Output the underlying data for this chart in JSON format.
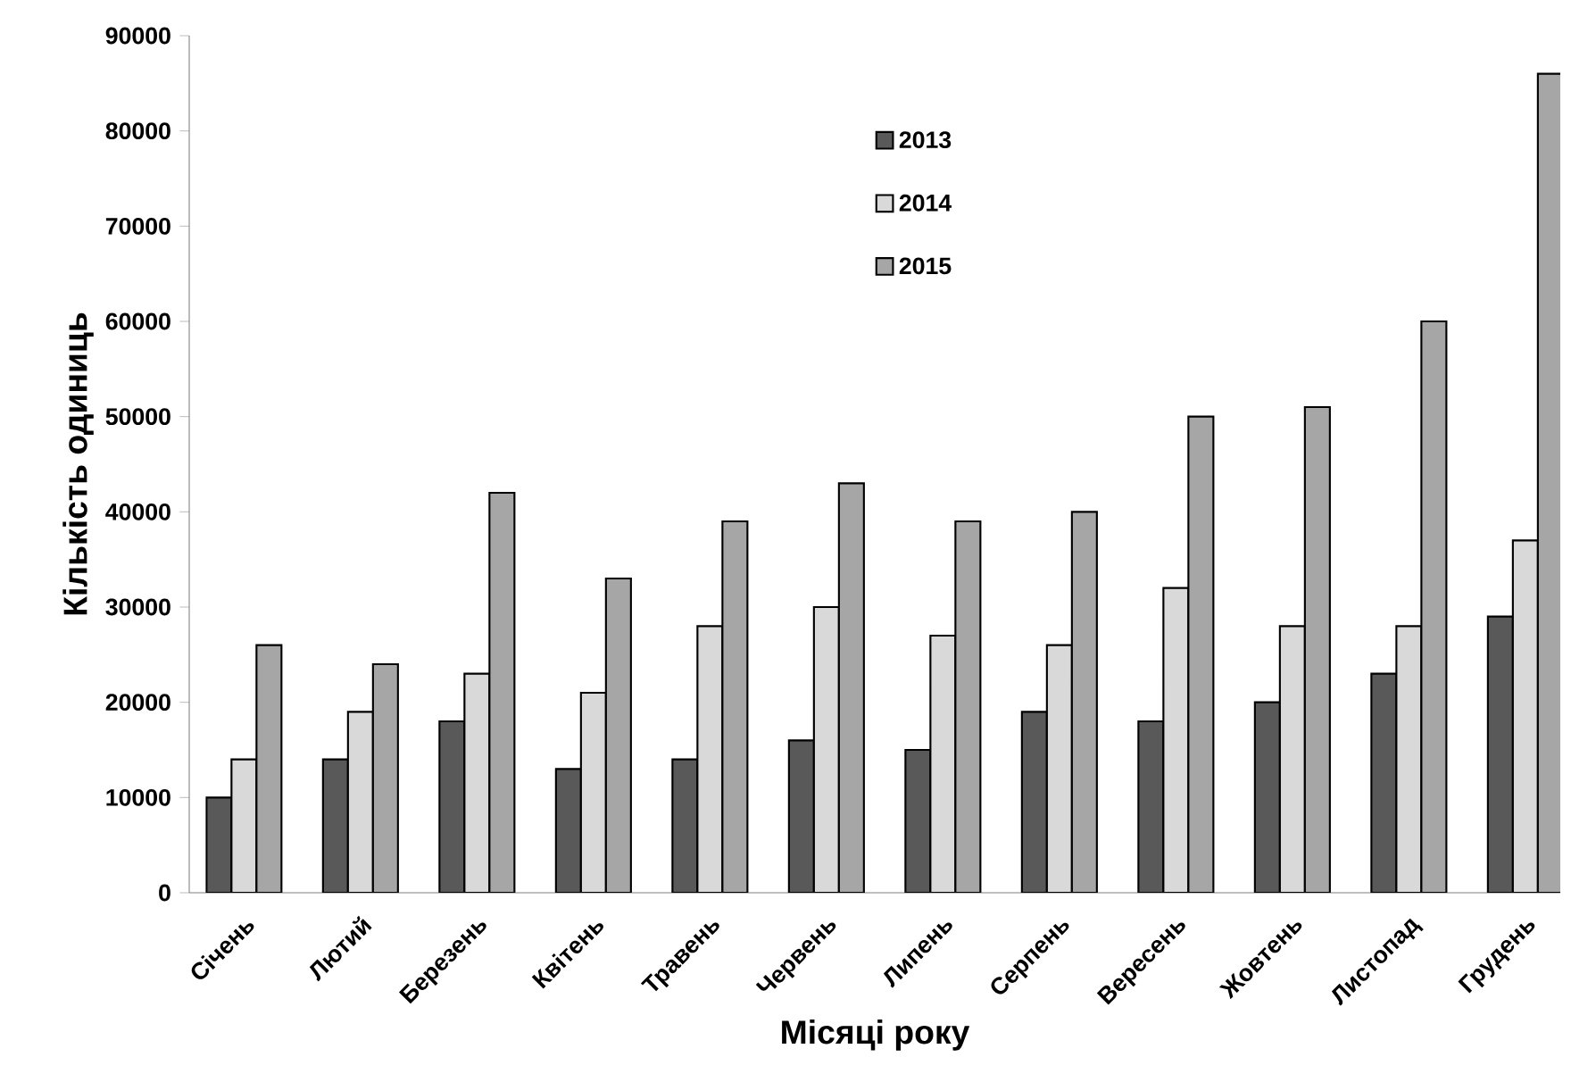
{
  "chart_data": {
    "type": "bar",
    "xlabel": "Місяці року",
    "ylabel": "Кількість одиниць",
    "categories": [
      "Січень",
      "Лютий",
      "Березень",
      "Квітень",
      "Травень",
      "Червень",
      "Липень",
      "Серпень",
      "Вересень",
      "Жовтень",
      "Листопад",
      "Грудень"
    ],
    "series": [
      {
        "name": "2013",
        "color": "#595959",
        "values": [
          10000,
          14000,
          18000,
          13000,
          14000,
          16000,
          15000,
          19000,
          18000,
          20000,
          23000,
          29000
        ]
      },
      {
        "name": "2014",
        "color": "#d9d9d9",
        "values": [
          14000,
          19000,
          23000,
          21000,
          28000,
          30000,
          27000,
          26000,
          32000,
          28000,
          28000,
          37000
        ]
      },
      {
        "name": "2015",
        "color": "#a6a6a6",
        "values": [
          26000,
          24000,
          42000,
          33000,
          39000,
          43000,
          39000,
          40000,
          50000,
          51000,
          60000,
          86000
        ]
      }
    ],
    "ylim": [
      0,
      90000
    ],
    "yticks": [
      0,
      10000,
      20000,
      30000,
      40000,
      50000,
      60000,
      70000,
      80000,
      90000
    ],
    "grid": false,
    "legend": "top"
  }
}
